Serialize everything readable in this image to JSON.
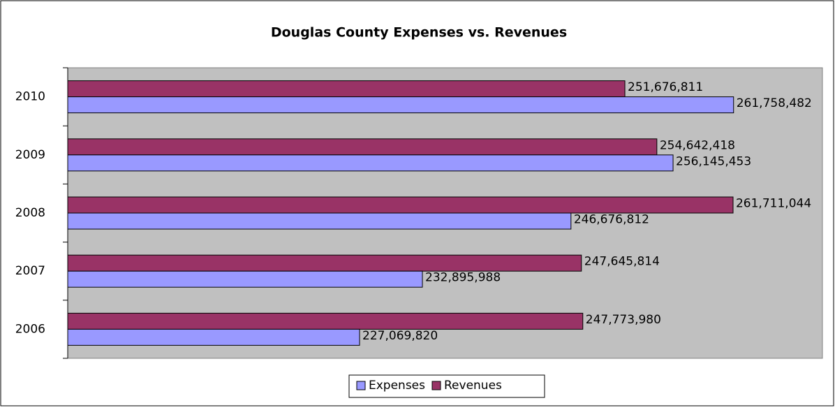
{
  "chart_data": {
    "type": "hbar",
    "title": "Douglas County Expenses vs. Revenues",
    "categories": [
      "2006",
      "2007",
      "2008",
      "2009",
      "2010"
    ],
    "series": [
      {
        "name": "Expenses",
        "color": "#9999ff",
        "values": [
          227069820,
          232895988,
          246676812,
          256145453,
          261758482
        ],
        "value_labels": [
          "227,069,820",
          "232,895,988",
          "246,676,812",
          "256,145,453",
          "261,758,482"
        ]
      },
      {
        "name": "Revenues",
        "color": "#993366",
        "values": [
          247773980,
          247645814,
          261711044,
          254642418,
          251676811
        ],
        "value_labels": [
          "247,773,980",
          "247,645,814",
          "261,711,044",
          "254,642,418",
          "251,676,811"
        ]
      }
    ],
    "xlim": [
      200000000,
      270000000
    ],
    "legend": "bottom"
  }
}
